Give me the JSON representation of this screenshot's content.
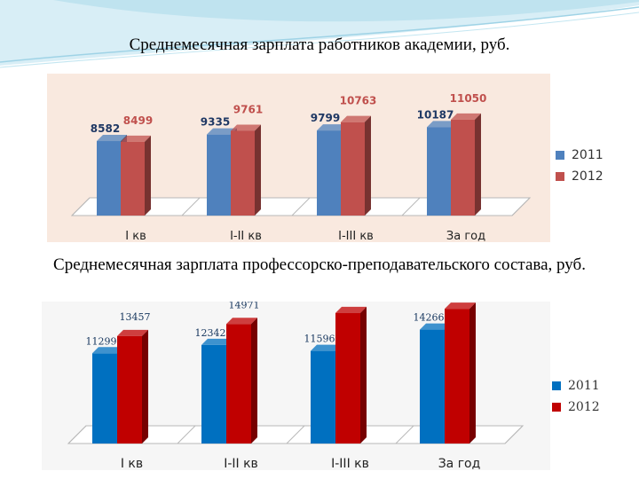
{
  "charts": [
    {
      "title": "Среднемесячная зарплата работников академии, руб.",
      "chart_data": {
        "type": "bar",
        "categories": [
          "I кв",
          "I-II кв",
          "I-III кв",
          "За год"
        ],
        "series": [
          {
            "name": "2011",
            "values": [
              8582,
              9335,
              9799,
              10187
            ],
            "color": "#4f81bd"
          },
          {
            "name": "2012",
            "values": [
              8499,
              9761,
              10763,
              11050
            ],
            "color": "#c0504d"
          }
        ],
        "ylim": [
          0,
          14000
        ],
        "legend": "right",
        "grid": false
      }
    },
    {
      "title": "Среднемесячная зарплата профессорско-преподавательского состава, руб.",
      "chart_data": {
        "type": "bar",
        "categories": [
          "I кв",
          "I-II кв",
          "I-III кв",
          "За год"
        ],
        "series": [
          {
            "name": "2011",
            "values": [
              11299,
              12342,
              11596,
              14266
            ],
            "color": "#0070c0"
          },
          {
            "name": "2012",
            "values": [
              13457,
              14971,
              16354,
              16871
            ],
            "color": "#c00000"
          }
        ],
        "ylim": [
          0,
          20000
        ],
        "legend": "right",
        "grid": false
      }
    }
  ]
}
